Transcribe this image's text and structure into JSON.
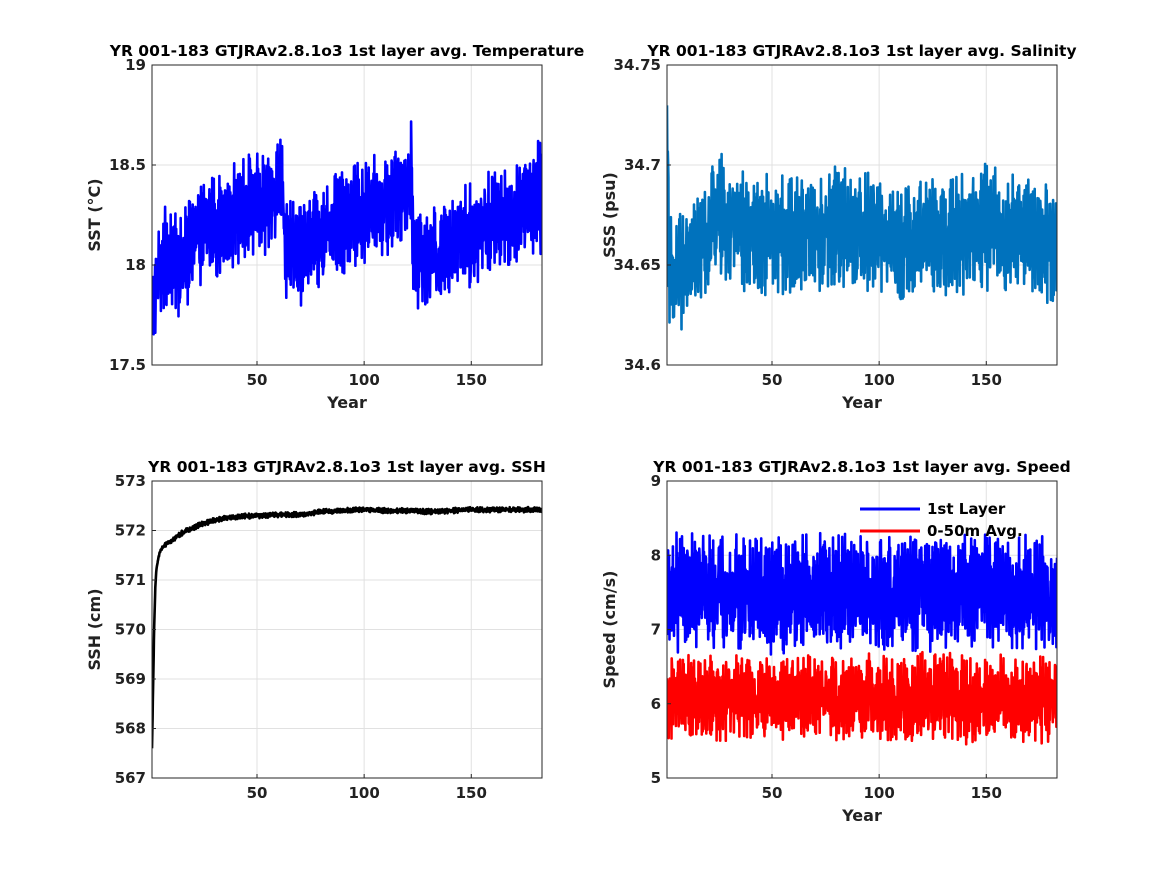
{
  "chart_data": [
    {
      "type": "line",
      "title": "YR 001-183 GTJRAv2.8.1o3 1st layer avg. Temperature",
      "xlabel": "Year",
      "ylabel": "SST (°C)",
      "xlim": [
        1,
        183
      ],
      "ylim": [
        17.5,
        19
      ],
      "xticks": [
        "50",
        "100",
        "150"
      ],
      "yticks": [
        "17.5",
        "18",
        "18.5",
        "19"
      ],
      "grid": true,
      "series": [
        {
          "color": "#0000ff",
          "x": [
            1,
            5,
            10,
            15,
            20,
            25,
            30,
            35,
            40,
            45,
            50,
            55,
            60,
            62,
            63,
            65,
            70,
            75,
            80,
            85,
            90,
            95,
            100,
            105,
            110,
            115,
            120,
            122,
            123,
            125,
            130,
            135,
            140,
            145,
            150,
            155,
            160,
            165,
            170,
            175,
            180,
            183
          ],
          "y": [
            17.75,
            18.0,
            18.05,
            18.0,
            18.1,
            18.15,
            18.2,
            18.2,
            18.25,
            18.3,
            18.3,
            18.3,
            18.4,
            18.45,
            18.1,
            18.05,
            18.05,
            18.1,
            18.15,
            18.2,
            18.2,
            18.25,
            18.25,
            18.3,
            18.3,
            18.35,
            18.4,
            18.45,
            18.1,
            18.05,
            18.05,
            18.05,
            18.1,
            18.15,
            18.15,
            18.2,
            18.2,
            18.25,
            18.25,
            18.3,
            18.35,
            18.35
          ],
          "spread": [
            0.18,
            0.25,
            0.25,
            0.25,
            0.25,
            0.25,
            0.25,
            0.25,
            0.25,
            0.25,
            0.25,
            0.25,
            0.25,
            0.25,
            0.25,
            0.25,
            0.25,
            0.25,
            0.25,
            0.25,
            0.25,
            0.25,
            0.25,
            0.25,
            0.25,
            0.25,
            0.25,
            0.25,
            0.25,
            0.25,
            0.25,
            0.25,
            0.25,
            0.25,
            0.25,
            0.25,
            0.25,
            0.25,
            0.25,
            0.25,
            0.28,
            0.3
          ]
        }
      ]
    },
    {
      "type": "line",
      "title": "YR 001-183 GTJRAv2.8.1o3 1st layer avg. Salinity",
      "xlabel": "Year",
      "ylabel": "SSS (psu)",
      "xlim": [
        1,
        183
      ],
      "ylim": [
        34.6,
        34.75
      ],
      "xticks": [
        "50",
        "100",
        "150"
      ],
      "yticks": [
        "34.6",
        "34.65",
        "34.7",
        "34.75"
      ],
      "grid": true,
      "series": [
        {
          "color": "#0072bd",
          "x": [
            1,
            2,
            3,
            4,
            6,
            10,
            15,
            20,
            25,
            30,
            40,
            50,
            60,
            70,
            80,
            90,
            100,
            110,
            120,
            130,
            140,
            150,
            160,
            170,
            183
          ],
          "y": [
            34.72,
            34.66,
            34.64,
            34.635,
            34.645,
            34.65,
            34.655,
            34.665,
            34.675,
            34.67,
            34.665,
            34.665,
            34.665,
            34.665,
            34.67,
            34.67,
            34.665,
            34.66,
            34.665,
            34.665,
            34.665,
            34.67,
            34.665,
            34.665,
            34.66
          ],
          "spread": [
            0.03,
            0.035,
            0.03,
            0.03,
            0.028,
            0.028,
            0.028,
            0.028,
            0.03,
            0.028,
            0.028,
            0.028,
            0.028,
            0.028,
            0.03,
            0.028,
            0.028,
            0.028,
            0.028,
            0.028,
            0.028,
            0.03,
            0.028,
            0.028,
            0.028
          ]
        }
      ]
    },
    {
      "type": "line",
      "title": "YR 001-183 GTJRAv2.8.1o3 1st layer avg. SSH",
      "xlabel": "",
      "ylabel": "SSH (cm)",
      "xlim": [
        1,
        183
      ],
      "ylim": [
        567,
        573
      ],
      "xticks": [
        "50",
        "100",
        "150"
      ],
      "yticks": [
        "567",
        "568",
        "569",
        "570",
        "571",
        "572",
        "573"
      ],
      "grid": true,
      "series": [
        {
          "color": "#000000",
          "x": [
            1,
            1.5,
            2,
            2.5,
            3,
            4,
            5,
            7,
            10,
            15,
            20,
            25,
            30,
            35,
            40,
            50,
            60,
            70,
            80,
            90,
            100,
            110,
            120,
            130,
            140,
            150,
            160,
            170,
            183
          ],
          "y": [
            567.6,
            568.8,
            570.0,
            570.8,
            571.2,
            571.45,
            571.6,
            571.7,
            571.8,
            571.95,
            572.05,
            572.15,
            572.2,
            572.25,
            572.28,
            572.3,
            572.32,
            572.32,
            572.38,
            572.4,
            572.42,
            572.4,
            572.4,
            572.38,
            572.4,
            572.42,
            572.42,
            572.42,
            572.42
          ],
          "spread": [
            0,
            0,
            0,
            0,
            0,
            0.02,
            0.03,
            0.04,
            0.05,
            0.05,
            0.05,
            0.05,
            0.05,
            0.05,
            0.05,
            0.05,
            0.05,
            0.05,
            0.05,
            0.05,
            0.05,
            0.05,
            0.05,
            0.05,
            0.05,
            0.05,
            0.05,
            0.05,
            0.05
          ]
        }
      ]
    },
    {
      "type": "line",
      "title": "YR 001-183 GTJRAv2.8.1o3 1st layer avg. Speed",
      "xlabel": "Year",
      "ylabel": "Speed (cm/s)",
      "xlim": [
        1,
        183
      ],
      "ylim": [
        5,
        9
      ],
      "xticks": [
        "50",
        "100",
        "150"
      ],
      "yticks": [
        "5",
        "6",
        "7",
        "8",
        "9"
      ],
      "grid": true,
      "legend": "top-right",
      "series": [
        {
          "name": "1st Layer",
          "color": "#0000ff",
          "x": [
            1,
            10,
            20,
            30,
            40,
            50,
            60,
            70,
            80,
            90,
            100,
            110,
            120,
            130,
            140,
            150,
            160,
            170,
            183
          ],
          "y": [
            7.5,
            7.5,
            7.5,
            7.5,
            7.5,
            7.45,
            7.5,
            7.55,
            7.5,
            7.5,
            7.45,
            7.5,
            7.5,
            7.55,
            7.5,
            7.5,
            7.5,
            7.5,
            7.45
          ],
          "spread": [
            0.75,
            0.75,
            0.75,
            0.75,
            0.75,
            0.75,
            0.75,
            0.75,
            0.75,
            0.75,
            0.75,
            0.75,
            0.75,
            0.75,
            0.75,
            0.75,
            0.75,
            0.75,
            0.75
          ]
        },
        {
          "name": "0-50m Avg.",
          "color": "#ff0000",
          "x": [
            1,
            10,
            20,
            30,
            40,
            50,
            60,
            70,
            80,
            90,
            100,
            110,
            120,
            130,
            140,
            150,
            160,
            170,
            183
          ],
          "y": [
            6.1,
            6.05,
            6.1,
            6.05,
            6.1,
            6.05,
            6.1,
            6.1,
            6.05,
            6.1,
            6.05,
            6.05,
            6.1,
            6.1,
            6.05,
            6.05,
            6.1,
            6.05,
            6.05
          ],
          "spread": [
            0.55,
            0.55,
            0.55,
            0.55,
            0.55,
            0.55,
            0.55,
            0.55,
            0.55,
            0.55,
            0.55,
            0.55,
            0.55,
            0.55,
            0.55,
            0.55,
            0.55,
            0.55,
            0.55
          ]
        }
      ]
    }
  ]
}
